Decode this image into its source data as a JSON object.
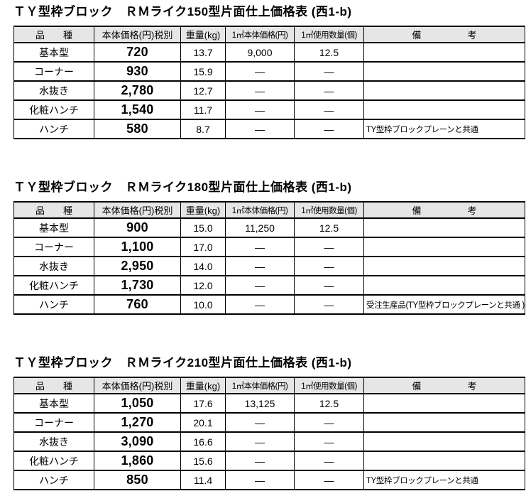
{
  "colors": {
    "header_bg": "#e6e6e6",
    "border": "#000000",
    "text": "#000000",
    "page_bg": "#ffffff"
  },
  "tables": [
    {
      "title": "ＴＹ型枠ブロック　ＲＭライク150型片面仕上価格表 (西1-b)",
      "headers": [
        "品　　種",
        "本体価格(円)税別",
        "重量(kg)",
        "1㎡本体価格(円)",
        "1㎡使用数量(個)",
        "備　　　　　考"
      ],
      "rows": [
        {
          "item": "基本型",
          "price": "720",
          "weight": "13.7",
          "unit_price": "9,000",
          "unit_qty": "12.5",
          "note": ""
        },
        {
          "item": "コーナー",
          "price": "930",
          "weight": "15.9",
          "unit_price": "—",
          "unit_qty": "—",
          "note": ""
        },
        {
          "item": "水抜き",
          "price": "2,780",
          "weight": "12.7",
          "unit_price": "—",
          "unit_qty": "—",
          "note": ""
        },
        {
          "item": "化粧ハンチ",
          "price": "1,540",
          "weight": "11.7",
          "unit_price": "—",
          "unit_qty": "—",
          "note": ""
        },
        {
          "item": "ハンチ",
          "price": "580",
          "weight": "8.7",
          "unit_price": "—",
          "unit_qty": "—",
          "note": "TY型枠ブロックプレーンと共通"
        }
      ]
    },
    {
      "title": "ＴＹ型枠ブロック　ＲＭライク180型片面仕上価格表 (西1-b)",
      "headers": [
        "品　　種",
        "本体価格(円)税別",
        "重量(kg)",
        "1㎡本体価格(円)",
        "1㎡使用数量(個)",
        "備　　　　　考"
      ],
      "rows": [
        {
          "item": "基本型",
          "price": "900",
          "weight": "15.0",
          "unit_price": "11,250",
          "unit_qty": "12.5",
          "note": ""
        },
        {
          "item": "コーナー",
          "price": "1,100",
          "weight": "17.0",
          "unit_price": "—",
          "unit_qty": "—",
          "note": ""
        },
        {
          "item": "水抜き",
          "price": "2,950",
          "weight": "14.0",
          "unit_price": "—",
          "unit_qty": "—",
          "note": ""
        },
        {
          "item": "化粧ハンチ",
          "price": "1,730",
          "weight": "12.0",
          "unit_price": "—",
          "unit_qty": "—",
          "note": ""
        },
        {
          "item": "ハンチ",
          "price": "760",
          "weight": "10.0",
          "unit_price": "—",
          "unit_qty": "—",
          "note": "受注生産品(TY型枠ブロックプレーンと共通 )"
        }
      ]
    },
    {
      "title": "ＴＹ型枠ブロック　ＲＭライク210型片面仕上価格表 (西1-b)",
      "headers": [
        "品　　種",
        "本体価格(円)税別",
        "重量(kg)",
        "1㎡本体価格(円)",
        "1㎡使用数量(個)",
        "備　　　　　考"
      ],
      "rows": [
        {
          "item": "基本型",
          "price": "1,050",
          "weight": "17.6",
          "unit_price": "13,125",
          "unit_qty": "12.5",
          "note": ""
        },
        {
          "item": "コーナー",
          "price": "1,270",
          "weight": "20.1",
          "unit_price": "—",
          "unit_qty": "—",
          "note": ""
        },
        {
          "item": "水抜き",
          "price": "3,090",
          "weight": "16.6",
          "unit_price": "—",
          "unit_qty": "—",
          "note": ""
        },
        {
          "item": "化粧ハンチ",
          "price": "1,860",
          "weight": "15.6",
          "unit_price": "—",
          "unit_qty": "—",
          "note": ""
        },
        {
          "item": "ハンチ",
          "price": "850",
          "weight": "11.4",
          "unit_price": "—",
          "unit_qty": "—",
          "note": "TY型枠ブロックプレーンと共通"
        }
      ]
    }
  ]
}
